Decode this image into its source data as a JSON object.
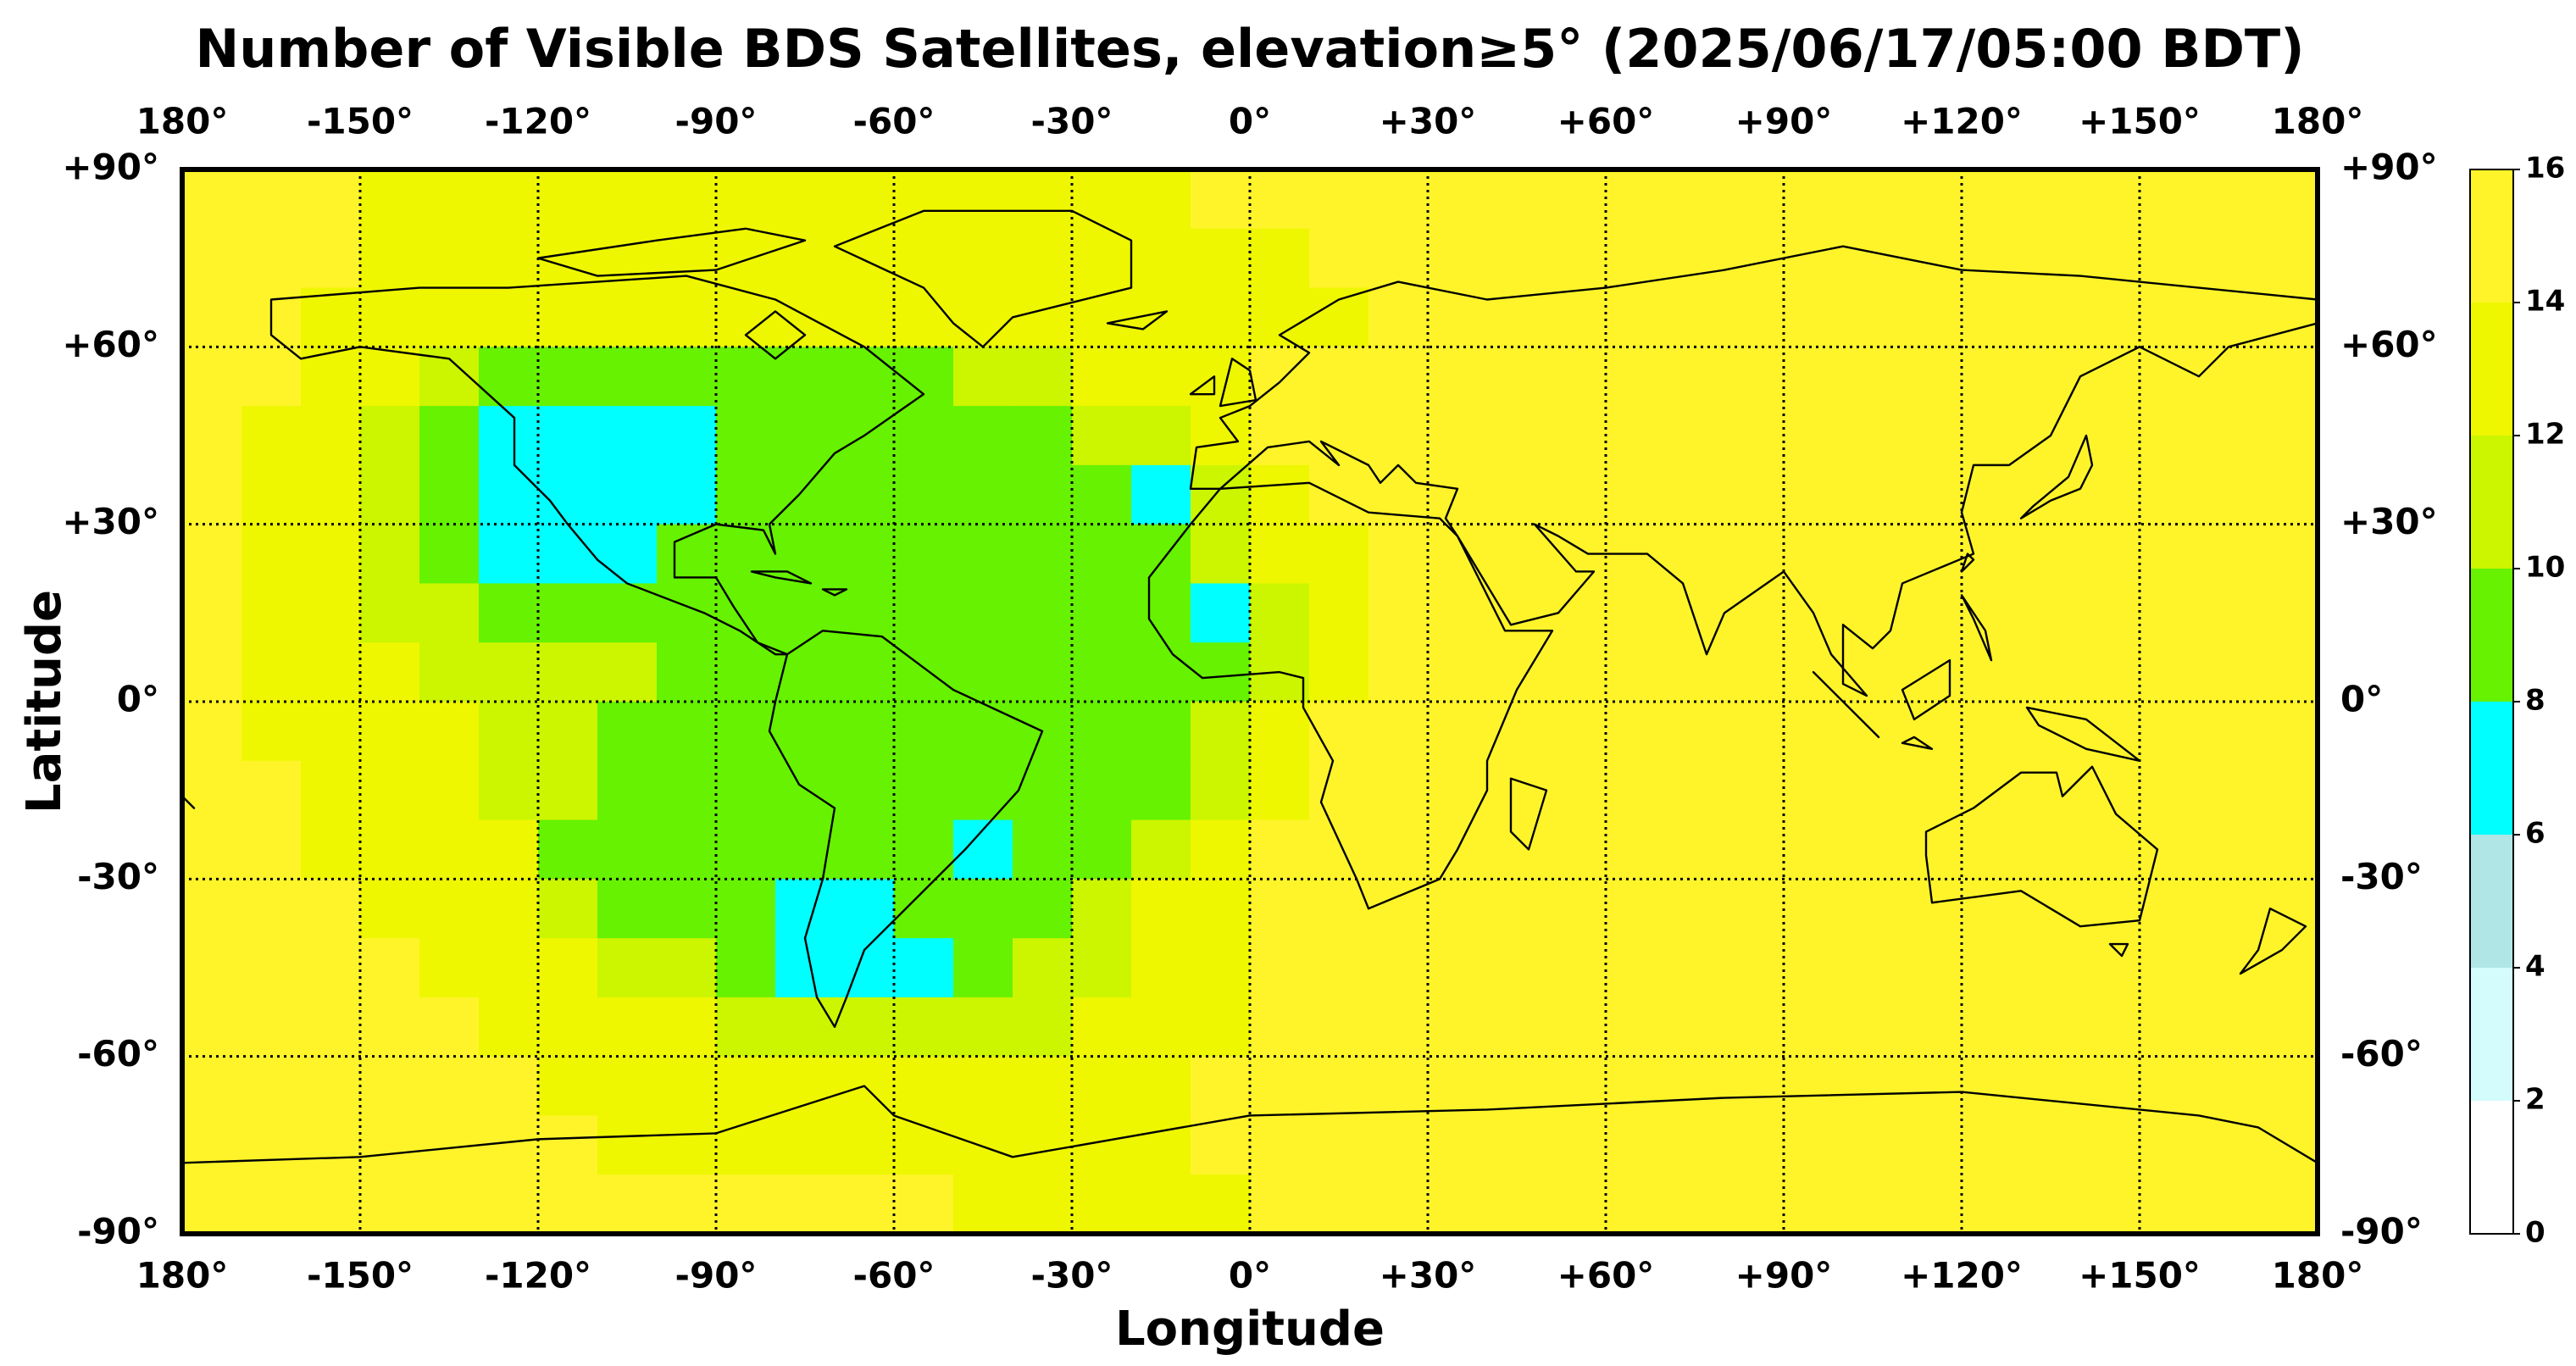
{
  "chart_data": {
    "type": "heatmap",
    "title": "Number of Visible BDS Satellites, elevation≥5° (2025/06/17/05:00 BDT)",
    "xlabel": "Longitude",
    "ylabel": "Latitude",
    "x_edges": [
      -180,
      -170,
      -160,
      -150,
      -140,
      -130,
      -120,
      -110,
      -100,
      -90,
      -80,
      -70,
      -60,
      -50,
      -40,
      -30,
      -20,
      -10,
      0,
      10,
      20,
      30,
      40,
      50,
      60,
      70,
      80,
      90,
      100,
      110,
      120,
      130,
      140,
      150,
      160,
      170,
      180
    ],
    "y_edges": [
      90,
      80,
      70,
      60,
      50,
      40,
      30,
      20,
      10,
      0,
      -10,
      -20,
      -30,
      -40,
      -50,
      -60,
      -70,
      -80,
      -90
    ],
    "z": [
      [
        15,
        15,
        15,
        13,
        13,
        13,
        13,
        13,
        13,
        13,
        13,
        13,
        13,
        13,
        13,
        13,
        13,
        15,
        15,
        15,
        15,
        15,
        15,
        15,
        15,
        15,
        15,
        15,
        15,
        15,
        15,
        15,
        15,
        15,
        15,
        15
      ],
      [
        15,
        15,
        15,
        13,
        13,
        13,
        13,
        13,
        13,
        13,
        13,
        13,
        13,
        13,
        13,
        13,
        13,
        13,
        13,
        15,
        15,
        15,
        15,
        15,
        15,
        15,
        15,
        15,
        15,
        15,
        15,
        15,
        15,
        15,
        15,
        15
      ],
      [
        15,
        15,
        13,
        13,
        13,
        13,
        13,
        13,
        13,
        13,
        13,
        13,
        13,
        13,
        13,
        13,
        13,
        13,
        13,
        13,
        15,
        15,
        15,
        15,
        15,
        15,
        15,
        15,
        15,
        15,
        15,
        15,
        15,
        15,
        15,
        15
      ],
      [
        15,
        15,
        13,
        13,
        11,
        9,
        9,
        9,
        9,
        9,
        9,
        9,
        9,
        11,
        11,
        13,
        13,
        13,
        15,
        15,
        15,
        15,
        15,
        15,
        15,
        15,
        15,
        15,
        15,
        15,
        15,
        15,
        15,
        15,
        15,
        15
      ],
      [
        15,
        13,
        13,
        11,
        9,
        7,
        7,
        7,
        7,
        9,
        9,
        9,
        9,
        9,
        9,
        11,
        11,
        13,
        15,
        15,
        15,
        15,
        15,
        15,
        15,
        15,
        15,
        15,
        15,
        15,
        15,
        15,
        15,
        15,
        15,
        15
      ],
      [
        15,
        13,
        13,
        11,
        9,
        7,
        7,
        7,
        7,
        9,
        9,
        9,
        9,
        9,
        9,
        9,
        7,
        11,
        13,
        15,
        15,
        15,
        15,
        15,
        15,
        15,
        15,
        15,
        15,
        15,
        15,
        15,
        15,
        15,
        15,
        15
      ],
      [
        15,
        13,
        13,
        11,
        9,
        7,
        7,
        7,
        9,
        9,
        9,
        9,
        9,
        9,
        9,
        9,
        9,
        11,
        13,
        13,
        15,
        15,
        15,
        15,
        15,
        15,
        15,
        15,
        15,
        15,
        15,
        15,
        15,
        15,
        15,
        15
      ],
      [
        15,
        13,
        13,
        11,
        11,
        9,
        9,
        9,
        9,
        9,
        9,
        9,
        9,
        9,
        9,
        9,
        9,
        7,
        11,
        13,
        15,
        15,
        15,
        15,
        15,
        15,
        15,
        15,
        15,
        15,
        15,
        15,
        15,
        15,
        15,
        15
      ],
      [
        15,
        13,
        13,
        13,
        11,
        11,
        11,
        11,
        9,
        9,
        9,
        9,
        9,
        9,
        9,
        9,
        9,
        9,
        11,
        13,
        15,
        15,
        15,
        15,
        15,
        15,
        15,
        15,
        15,
        15,
        15,
        15,
        15,
        15,
        15,
        15
      ],
      [
        15,
        13,
        13,
        13,
        13,
        11,
        11,
        9,
        9,
        9,
        9,
        9,
        9,
        9,
        9,
        9,
        9,
        11,
        13,
        15,
        15,
        15,
        15,
        15,
        15,
        15,
        15,
        15,
        15,
        15,
        15,
        15,
        15,
        15,
        15,
        15
      ],
      [
        15,
        15,
        13,
        13,
        13,
        11,
        11,
        9,
        9,
        9,
        9,
        9,
        9,
        9,
        9,
        9,
        9,
        11,
        13,
        15,
        15,
        15,
        15,
        15,
        15,
        15,
        15,
        15,
        15,
        15,
        15,
        15,
        15,
        15,
        15,
        15
      ],
      [
        15,
        15,
        13,
        13,
        13,
        13,
        9,
        9,
        9,
        9,
        9,
        9,
        9,
        7,
        9,
        9,
        11,
        13,
        15,
        15,
        15,
        15,
        15,
        15,
        15,
        15,
        15,
        15,
        15,
        15,
        15,
        15,
        15,
        15,
        15,
        15
      ],
      [
        15,
        15,
        15,
        13,
        13,
        13,
        11,
        9,
        9,
        9,
        7,
        7,
        9,
        9,
        9,
        11,
        13,
        13,
        15,
        15,
        15,
        15,
        15,
        15,
        15,
        15,
        15,
        15,
        15,
        15,
        15,
        15,
        15,
        15,
        15,
        15
      ],
      [
        15,
        15,
        15,
        15,
        13,
        13,
        13,
        11,
        11,
        9,
        7,
        7,
        7,
        9,
        11,
        11,
        13,
        13,
        15,
        15,
        15,
        15,
        15,
        15,
        15,
        15,
        15,
        15,
        15,
        15,
        15,
        15,
        15,
        15,
        15,
        15
      ],
      [
        15,
        15,
        15,
        15,
        15,
        13,
        13,
        13,
        13,
        11,
        11,
        11,
        11,
        11,
        11,
        13,
        13,
        13,
        15,
        15,
        15,
        15,
        15,
        15,
        15,
        15,
        15,
        15,
        15,
        15,
        15,
        15,
        15,
        15,
        15,
        15
      ],
      [
        15,
        15,
        15,
        15,
        15,
        15,
        13,
        13,
        13,
        13,
        13,
        13,
        13,
        13,
        13,
        13,
        13,
        15,
        15,
        15,
        15,
        15,
        15,
        15,
        15,
        15,
        15,
        15,
        15,
        15,
        15,
        15,
        15,
        15,
        15,
        15
      ],
      [
        15,
        15,
        15,
        15,
        15,
        15,
        15,
        13,
        13,
        13,
        13,
        13,
        13,
        13,
        13,
        13,
        13,
        15,
        15,
        15,
        15,
        15,
        15,
        15,
        15,
        15,
        15,
        15,
        15,
        15,
        15,
        15,
        15,
        15,
        15,
        15
      ],
      [
        15,
        15,
        15,
        15,
        15,
        15,
        15,
        15,
        15,
        15,
        15,
        15,
        15,
        13,
        13,
        13,
        13,
        13,
        15,
        15,
        15,
        15,
        15,
        15,
        15,
        15,
        15,
        15,
        15,
        15,
        15,
        15,
        15,
        15,
        15,
        15
      ]
    ],
    "xlim": [
      -180,
      180
    ],
    "ylim": [
      -90,
      90
    ],
    "xticks": [
      {
        "value": -180,
        "label": "180°"
      },
      {
        "value": -150,
        "label": "-150°"
      },
      {
        "value": -120,
        "label": "-120°"
      },
      {
        "value": -90,
        "label": "-90°"
      },
      {
        "value": -60,
        "label": "-60°"
      },
      {
        "value": -30,
        "label": "-30°"
      },
      {
        "value": 0,
        "label": "0°"
      },
      {
        "value": 30,
        "label": "+30°"
      },
      {
        "value": 60,
        "label": "+60°"
      },
      {
        "value": 90,
        "label": "+90°"
      },
      {
        "value": 120,
        "label": "+120°"
      },
      {
        "value": 150,
        "label": "+150°"
      },
      {
        "value": 180,
        "label": "180°"
      }
    ],
    "yticks": [
      {
        "value": 90,
        "label": "+90°"
      },
      {
        "value": 60,
        "label": "+60°"
      },
      {
        "value": 30,
        "label": "+30°"
      },
      {
        "value": 0,
        "label": "0°"
      },
      {
        "value": -30,
        "label": "-30°"
      },
      {
        "value": -60,
        "label": "-60°"
      },
      {
        "value": -90,
        "label": "-90°"
      }
    ],
    "grid": true,
    "colorbar": {
      "levels": [
        0,
        2,
        4,
        6,
        8,
        10,
        12,
        14,
        16
      ],
      "colors": [
        "#ffffff",
        "#d4fcfc",
        "#b0e6e6",
        "#00ffff",
        "#66f200",
        "#ccf500",
        "#eef700",
        "#fff42a"
      ],
      "ticks": [
        0,
        2,
        4,
        6,
        8,
        10,
        12,
        14,
        16
      ]
    }
  }
}
